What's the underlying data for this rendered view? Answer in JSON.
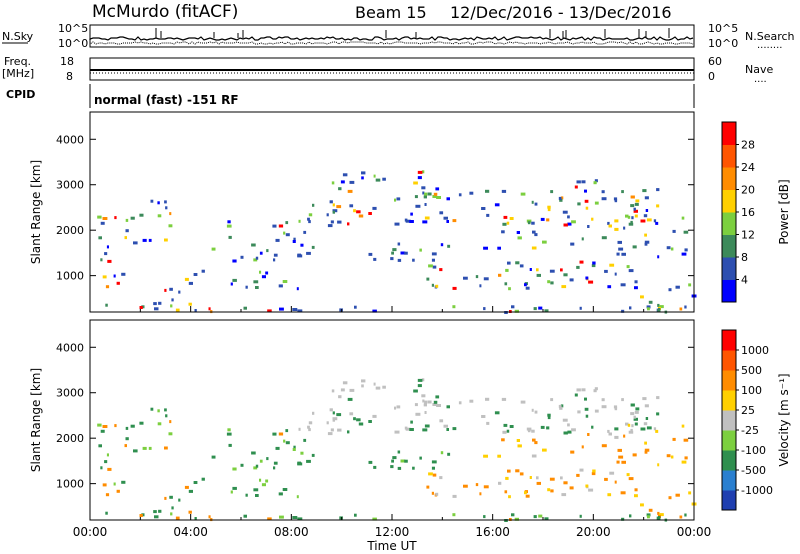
{
  "header": {
    "station": "McMurdo (fitACF)",
    "beam": "Beam 15",
    "date_range": "12/Dec/2016 - 13/Dec/2016"
  },
  "strip_nsky": {
    "left_label": "N.Sky",
    "right_label": "N.Search",
    "right_legend": "........",
    "left_ticks": [
      "10^5",
      "10^0"
    ],
    "right_ticks": [
      "10^5",
      "10^0"
    ]
  },
  "strip_freq": {
    "left_label": "Freq.",
    "left_unit": "[MHz]",
    "left_ticks": [
      "18",
      "8"
    ],
    "right_label": "Nave",
    "right_legend": "....",
    "right_ticks": [
      "60",
      "0"
    ]
  },
  "cpid": {
    "label": "CPID",
    "text": "normal (fast) -151 RF"
  },
  "chart_data": [
    {
      "type": "heatmap",
      "ylabel": "Slant Range [km]",
      "xlabel": "",
      "yticks": [
        1000,
        2000,
        3000,
        4000
      ],
      "ylim": [
        200,
        4600
      ],
      "colorbar": {
        "label": "Power [dB]",
        "ticks": [
          "4",
          "8",
          "12",
          "16",
          "20",
          "24",
          "28"
        ],
        "levels": [
          2,
          6,
          10,
          14,
          18,
          22,
          26,
          30
        ],
        "colors": [
          "#0000ff",
          "#2d4fb0",
          "#3c8a5a",
          "#7ccf3f",
          "#ffd000",
          "#ff8c00",
          "#ff5500",
          "#ff0000"
        ]
      }
    },
    {
      "type": "heatmap",
      "ylabel": "Slant Range [km]",
      "xlabel": "Time UT",
      "xticks": [
        "00:00",
        "04:00",
        "08:00",
        "12:00",
        "16:00",
        "20:00",
        "00:00"
      ],
      "yticks": [
        1000,
        2000,
        3000,
        4000
      ],
      "ylim": [
        200,
        4600
      ],
      "colorbar": {
        "label": "Velocity [m s⁻¹]",
        "ticks": [
          "1000",
          "500",
          "100",
          "25",
          "-25",
          "-100",
          "-500",
          "-1000"
        ],
        "colors": [
          "#1f3fb0",
          "#2a7fcf",
          "#2f8f4f",
          "#7ccf3f",
          "#c0c0c0",
          "#ffd000",
          "#ff8c00",
          "#ff5500",
          "#ff0000"
        ]
      }
    }
  ]
}
